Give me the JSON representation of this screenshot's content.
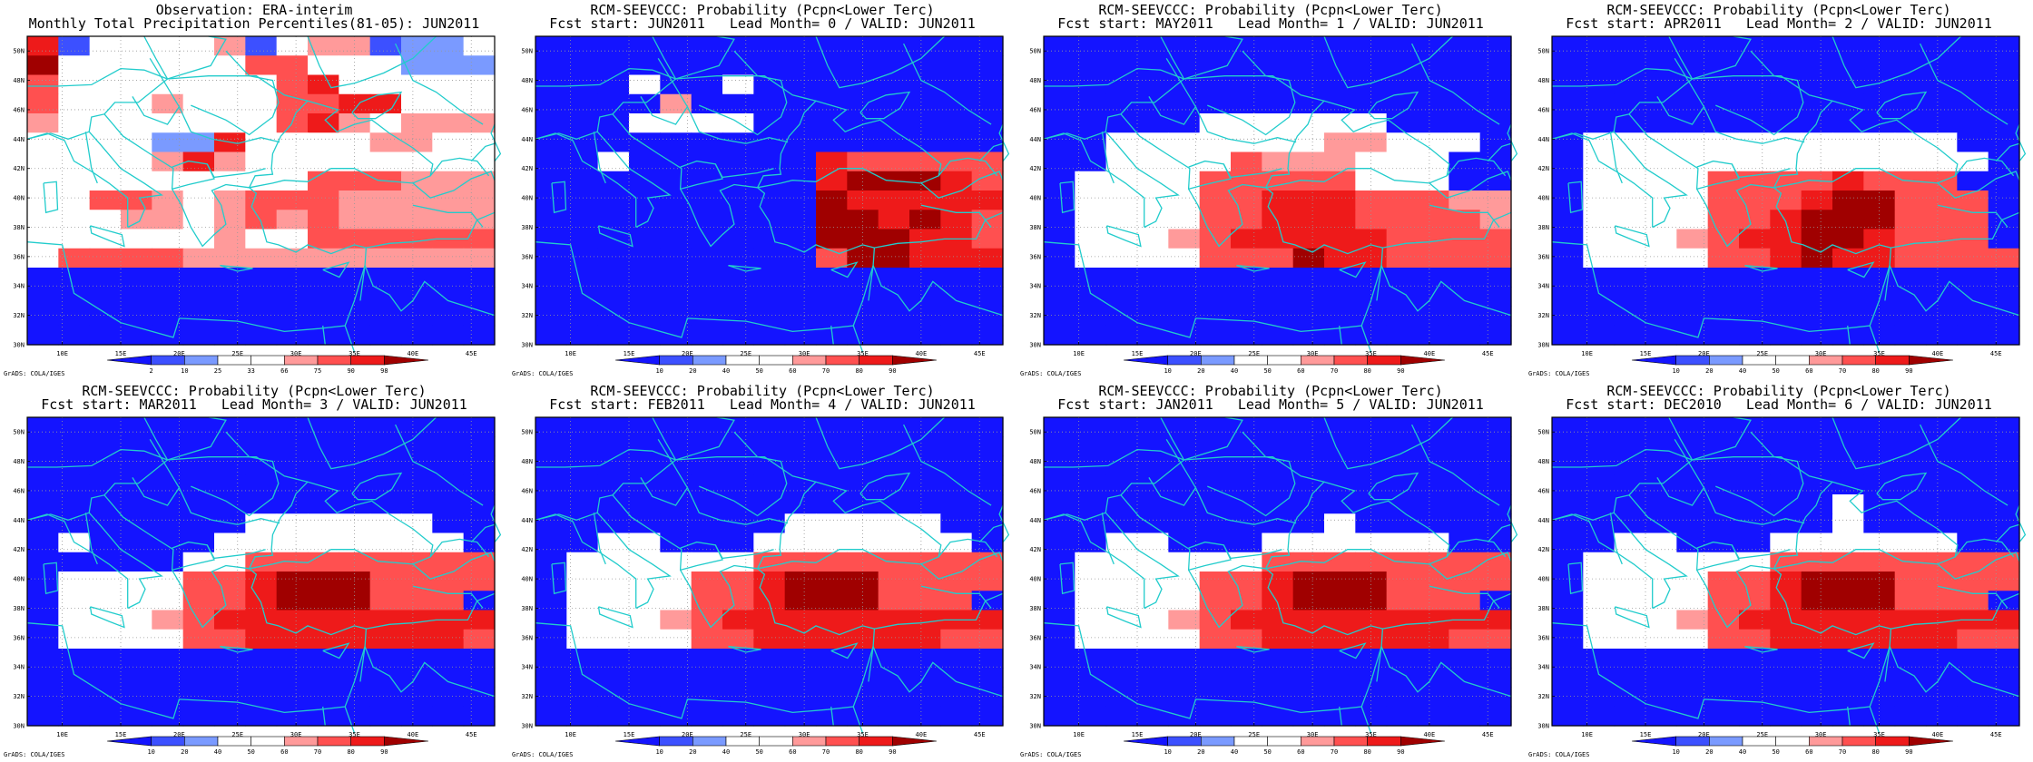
{
  "colors": {
    "obs": [
      "#1414ff",
      "#3c50ff",
      "#7a9aff",
      "#ffffff",
      "#ffffff",
      "#ff9a9a",
      "#ff5050",
      "#ee1a1a",
      "#a00000"
    ],
    "prob": [
      "#1414ff",
      "#3c50ff",
      "#7a9aff",
      "#ffffff",
      "#ffffff",
      "#ff9a9a",
      "#ff5050",
      "#ee1a1a",
      "#a00000"
    ]
  },
  "lat_labels": [
    "30N",
    "32N",
    "34N",
    "36N",
    "38N",
    "40N",
    "42N",
    "44N",
    "46N",
    "48N",
    "50N"
  ],
  "lon_labels": [
    "10E",
    "15E",
    "20E",
    "25E",
    "30E",
    "35E",
    "40E",
    "45E"
  ],
  "footer": "GrADS: COLA/IGES",
  "panels": [
    {
      "title1": "Observation: ERA-interim",
      "title2": "Monthly Total Precipitation Percentiles(81-05): JUN2011",
      "cbar_labels": [
        "2",
        "10",
        "25",
        "33",
        "66",
        "75",
        "90",
        "98"
      ],
      "palette": "obs",
      "grid": [
        "713333513551223",
        "833433366333222",
        "633334336733333",
        "633353336677333",
        "533344446753555",
        "333322733335533",
        "333357533333333",
        "333333333666555",
        "336653566655555",
        "333553565655555",
        "433333533666666",
        "366665555555555",
        "000000000000000",
        "000000000000000",
        "000000000000000",
        "000000000000000"
      ]
    },
    {
      "title1": "RCM-SEEVCCC: Probability (Pcpn<Lower Terc)",
      "title2": "Fcst start: JUN2011   Lead Month= 0 / VALID: JUN2011",
      "cbar_labels": [
        "10",
        "20",
        "40",
        "50",
        "60",
        "70",
        "80",
        "90"
      ],
      "palette": "prob",
      "grid": [
        "000000000000000",
        "000000000000000",
        "000300300000000",
        "000050000000000",
        "000333300000000",
        "000000000000000",
        "003000000766666",
        "000000000788876",
        "000000000877777",
        "000000000887876",
        "000000000888776",
        "000000000688777",
        "000000000000000",
        "000000000000000",
        "000000000000000",
        "000000000000000"
      ]
    },
    {
      "title1": "RCM-SEEVCCC: Probability (Pcpn<Lower Terc)",
      "title2": "Fcst start: MAY2011   Lead Month= 1 / VALID: JUN2011",
      "cbar_labels": [
        "10",
        "20",
        "40",
        "50",
        "60",
        "70",
        "80",
        "90"
      ],
      "palette": "prob",
      "grid": [
        "000000000000000",
        "000000000000000",
        "000000000000000",
        "000000000000000",
        "000003333330000",
        "003333333553330",
        "003333655533300",
        "033336666633300",
        "033336677766655",
        "033336677766665",
        "033356777776666",
        "033336668776666",
        "000000000000000",
        "000000000000000",
        "000000000000000",
        "000000000000000"
      ]
    },
    {
      "title1": "RCM-SEEVCCC: Probability (Pcpn<Lower Terc)",
      "title2": "Fcst start: APR2011   Lead Month= 2 / VALID: JUN2011",
      "cbar_labels": [
        "10",
        "20",
        "40",
        "50",
        "60",
        "70",
        "80",
        "90"
      ],
      "palette": "prob",
      "grid": [
        "000000000000000",
        "000000000000000",
        "000000000000000",
        "000000000000000",
        "000000000000000",
        "033333333333300",
        "033333333333330",
        "033336666766600",
        "033336667886660",
        "033336678886660",
        "033356778876660",
        "033336678776666",
        "000000000000000",
        "000000000000000",
        "000000000000000",
        "000000000000000"
      ]
    },
    {
      "title1": "RCM-SEEVCCC: Probability (Pcpn<Lower Terc)",
      "title2": "Fcst start: MAR2011   Lead Month= 3 / VALID: JUN2011",
      "cbar_labels": [
        "10",
        "20",
        "40",
        "50",
        "60",
        "70",
        "80",
        "90"
      ],
      "palette": "prob",
      "grid": [
        "000000000000000",
        "000000000000000",
        "000000000000000",
        "000000000000000",
        "000000000000000",
        "000000033333300",
        "030000333333330",
        "000003366666666",
        "033336678886666",
        "033336678886660",
        "033356777777777",
        "033336677777776",
        "000000000000000",
        "000000000000000",
        "000000000000000",
        "000000000000000"
      ]
    },
    {
      "title1": "RCM-SEEVCCC: Probability (Pcpn<Lower Terc)",
      "title2": "Fcst start: FEB2011   Lead Month= 4 / VALID: JUN2011",
      "cbar_labels": [
        "10",
        "20",
        "40",
        "50",
        "60",
        "70",
        "80",
        "90"
      ],
      "palette": "prob",
      "grid": [
        "000000000000000",
        "000000000000000",
        "000000000000000",
        "000000000000000",
        "000000000000000",
        "000000003333300",
        "003300033333330",
        "033333366666666",
        "033336678886666",
        "033336678886660",
        "033356777777777",
        "033336677777766",
        "000000000000000",
        "000000000000000",
        "000000000000000",
        "000000000000000"
      ]
    },
    {
      "title1": "RCM-SEEVCCC: Probability (Pcpn<Lower Terc)",
      "title2": "Fcst start: JAN2011   Lead Month= 5 / VALID: JUN2011",
      "cbar_labels": [
        "10",
        "20",
        "40",
        "50",
        "60",
        "70",
        "80",
        "90"
      ],
      "palette": "prob",
      "grid": [
        "000000000000000",
        "000000000000000",
        "000000000000000",
        "000000000000000",
        "000000000000000",
        "000000000300000",
        "003300033333300",
        "033333366666666",
        "033336678886666",
        "033336678886660",
        "033356777777777",
        "033336677777766",
        "000000000000000",
        "000000000000000",
        "000000000000000",
        "000000000000000"
      ]
    },
    {
      "title1": "RCM-SEEVCCC: Probability (Pcpn<Lower Terc)",
      "title2": "Fcst start: DEC2010   Lead Month= 6 / VALID: JUN2011",
      "cbar_labels": [
        "10",
        "20",
        "40",
        "50",
        "60",
        "70",
        "80",
        "90"
      ],
      "palette": "prob",
      "grid": [
        "000000000000000",
        "000000000000000",
        "000000000000000",
        "000000000000000",
        "000000000300000",
        "000000000300000",
        "003300033333300",
        "033333366666666",
        "033336678886666",
        "033336678886660",
        "033356777777777",
        "033336677777766",
        "000000000000000",
        "000000000000000",
        "000000000000000",
        "000000000000000"
      ]
    }
  ]
}
